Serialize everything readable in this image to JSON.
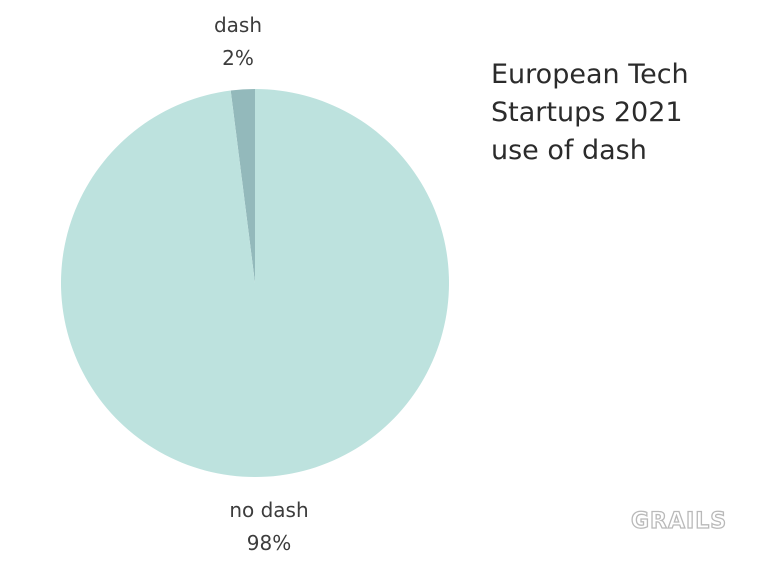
{
  "chart_data": {
    "type": "pie",
    "title_lines": [
      "European Tech",
      "Startups 2021",
      "use of dash"
    ],
    "slices": [
      {
        "label": "dash",
        "value": 2,
        "value_label": "2%",
        "color": "#93b9bb"
      },
      {
        "label": "no dash",
        "value": 98,
        "value_label": "98%",
        "color": "#bde2de"
      }
    ]
  },
  "watermark": "GRAILS"
}
